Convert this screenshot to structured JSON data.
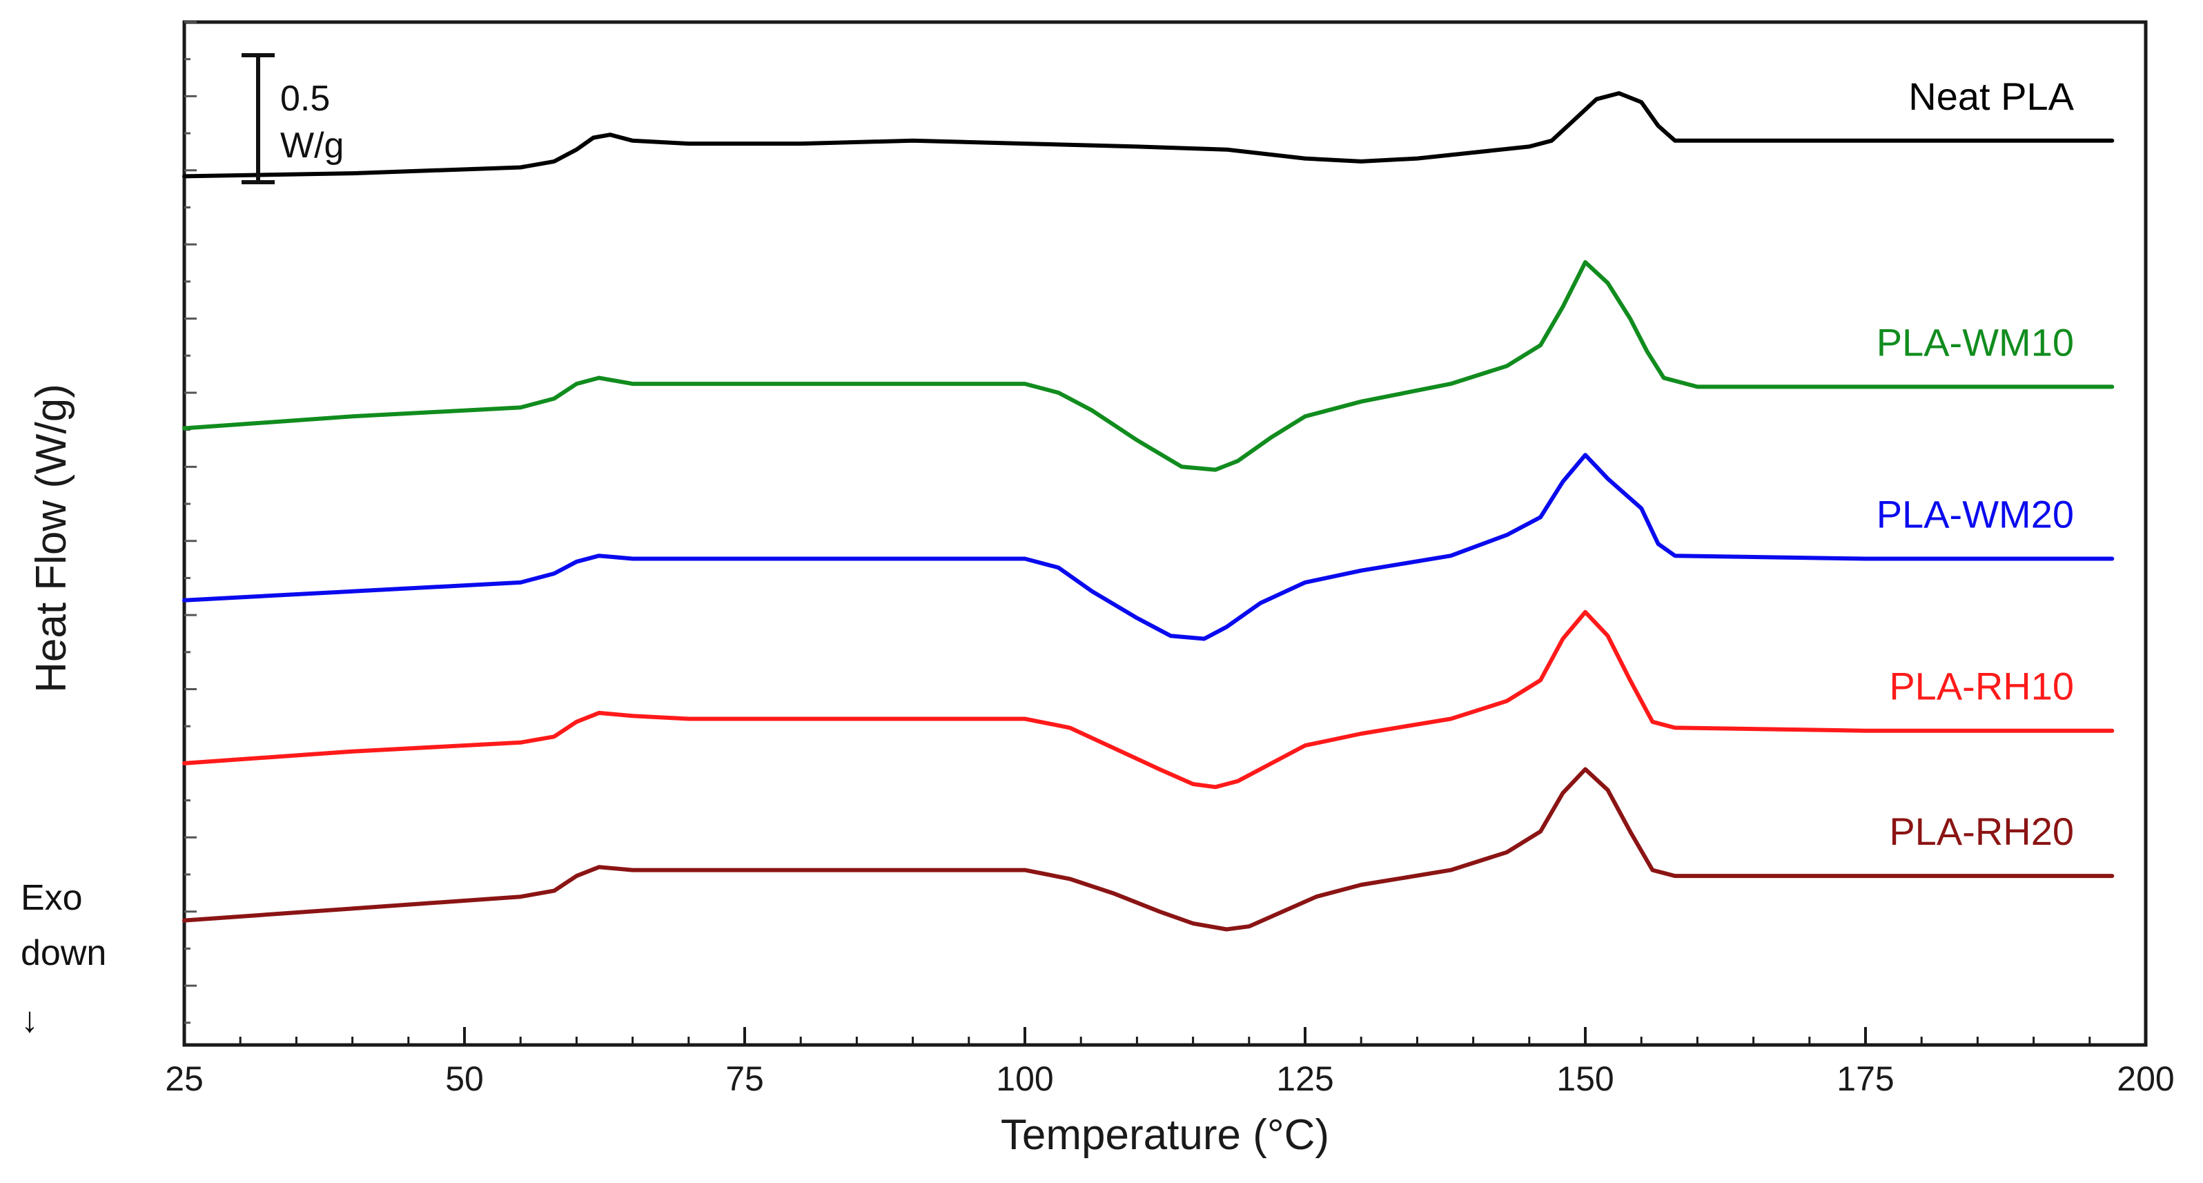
{
  "chart_data": {
    "type": "line",
    "title": "",
    "xlabel": "Temperature (°C)",
    "ylabel": "Heat Flow (W/g)",
    "xlim": [
      25,
      200
    ],
    "x_ticks": [
      25,
      50,
      75,
      100,
      125,
      150,
      175,
      200
    ],
    "y_ticks_labeled": false,
    "grid": false,
    "legend": "inline labels at right end of each curve",
    "scale_bar": {
      "value": "0.5",
      "unit": "W/g",
      "units_value": 0.5
    },
    "exo_annotation": {
      "line1": "Exo",
      "line2": "down",
      "arrow": "↓"
    },
    "series": [
      {
        "name": "Neat PLA",
        "color": "#000000",
        "x": [
          25,
          40,
          55,
          58,
          60,
          61.5,
          63,
          65,
          70,
          80,
          90,
          100,
          110,
          118,
          125,
          130,
          135,
          140,
          145,
          147,
          149,
          151,
          153,
          155,
          156.5,
          158,
          165,
          180,
          197
        ],
        "values": [
          -0.52,
          -0.51,
          -0.49,
          -0.47,
          -0.43,
          -0.39,
          -0.38,
          -0.4,
          -0.41,
          -0.41,
          -0.4,
          -0.41,
          -0.42,
          -0.43,
          -0.46,
          -0.47,
          -0.46,
          -0.44,
          -0.42,
          -0.4,
          -0.33,
          -0.26,
          -0.24,
          -0.27,
          -0.35,
          -0.4,
          -0.4,
          -0.4,
          -0.4
        ]
      },
      {
        "name": "PLA-WM10",
        "color": "#118c1e",
        "x": [
          25,
          40,
          55,
          58,
          60,
          62,
          65,
          70,
          80,
          90,
          100,
          103,
          106,
          110,
          114,
          117,
          119,
          122,
          125,
          130,
          138,
          143,
          146,
          148,
          150,
          152,
          154,
          155.5,
          157,
          160,
          175,
          197
        ],
        "values": [
          -1.37,
          -1.33,
          -1.3,
          -1.27,
          -1.22,
          -1.2,
          -1.22,
          -1.22,
          -1.22,
          -1.22,
          -1.22,
          -1.25,
          -1.31,
          -1.41,
          -1.5,
          -1.51,
          -1.48,
          -1.4,
          -1.33,
          -1.28,
          -1.22,
          -1.16,
          -1.09,
          -0.96,
          -0.81,
          -0.88,
          -1.0,
          -1.11,
          -1.2,
          -1.23,
          -1.23,
          -1.23
        ]
      },
      {
        "name": "PLA-WM20",
        "color": "#0a0aee",
        "x": [
          25,
          40,
          55,
          58,
          60,
          62,
          65,
          70,
          80,
          90,
          100,
          103,
          106,
          110,
          113,
          116,
          118,
          121,
          125,
          130,
          138,
          143,
          146,
          148,
          150,
          152,
          153.5,
          155,
          156.5,
          158,
          175,
          197
        ],
        "values": [
          -1.95,
          -1.92,
          -1.89,
          -1.86,
          -1.82,
          -1.8,
          -1.81,
          -1.81,
          -1.81,
          -1.81,
          -1.81,
          -1.84,
          -1.92,
          -2.01,
          -2.07,
          -2.08,
          -2.04,
          -1.96,
          -1.89,
          -1.85,
          -1.8,
          -1.73,
          -1.67,
          -1.55,
          -1.46,
          -1.54,
          -1.59,
          -1.64,
          -1.76,
          -1.8,
          -1.81,
          -1.81
        ]
      },
      {
        "name": "PLA-RH10",
        "color": "#ff1a1a",
        "x": [
          25,
          40,
          55,
          58,
          60,
          62,
          65,
          70,
          80,
          90,
          100,
          104,
          108,
          112,
          115,
          117,
          119,
          122,
          125,
          130,
          138,
          143,
          146,
          148,
          150,
          152,
          154,
          156,
          158,
          175,
          197
        ],
        "values": [
          -2.5,
          -2.46,
          -2.43,
          -2.41,
          -2.36,
          -2.33,
          -2.34,
          -2.35,
          -2.35,
          -2.35,
          -2.35,
          -2.38,
          -2.45,
          -2.52,
          -2.57,
          -2.58,
          -2.56,
          -2.5,
          -2.44,
          -2.4,
          -2.35,
          -2.29,
          -2.22,
          -2.08,
          -1.99,
          -2.07,
          -2.22,
          -2.36,
          -2.38,
          -2.39,
          -2.39
        ]
      },
      {
        "name": "PLA-RH20",
        "color": "#8b1414",
        "x": [
          25,
          40,
          55,
          58,
          60,
          62,
          65,
          70,
          80,
          90,
          100,
          104,
          108,
          112,
          115,
          118,
          120,
          123,
          126,
          130,
          138,
          143,
          146,
          148,
          150,
          152,
          154,
          156,
          158,
          175,
          197
        ],
        "values": [
          -3.03,
          -2.99,
          -2.95,
          -2.93,
          -2.88,
          -2.85,
          -2.86,
          -2.86,
          -2.86,
          -2.86,
          -2.86,
          -2.89,
          -2.94,
          -3.0,
          -3.04,
          -3.06,
          -3.05,
          -3.0,
          -2.95,
          -2.91,
          -2.86,
          -2.8,
          -2.73,
          -2.6,
          -2.52,
          -2.59,
          -2.73,
          -2.86,
          -2.88,
          -2.88,
          -2.88
        ]
      }
    ]
  }
}
